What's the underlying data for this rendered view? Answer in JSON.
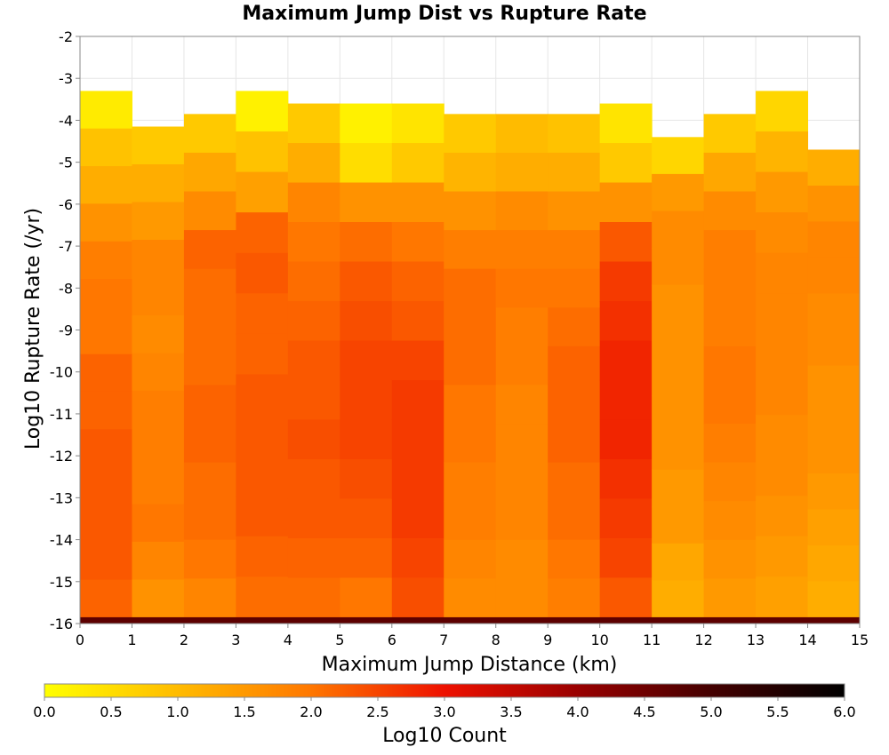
{
  "chart_data": {
    "type": "heatmap",
    "title": "Maximum Jump Dist vs Rupture Rate",
    "xlabel": "Maximum Jump Distance (km)",
    "ylabel": "Log10 Rupture Rate (/yr)",
    "xlim": [
      0,
      15
    ],
    "ylim": [
      -16,
      -2
    ],
    "x_ticks": [
      "0",
      "1",
      "2",
      "3",
      "4",
      "5",
      "6",
      "7",
      "8",
      "9",
      "10",
      "11",
      "12",
      "13",
      "14",
      "15"
    ],
    "y_ticks": [
      "-2",
      "-3",
      "-4",
      "-5",
      "-6",
      "-7",
      "-8",
      "-9",
      "-10",
      "-11",
      "-12",
      "-13",
      "-14",
      "-15",
      "-16"
    ],
    "grid": true,
    "x_bins": [
      0,
      1,
      2,
      3,
      4,
      5,
      6,
      7,
      8,
      9,
      10,
      11,
      12,
      13,
      14,
      15
    ],
    "y_bin_width": 0.286,
    "colorbar": {
      "label": "Log10 Count",
      "ticks": [
        "0.0",
        "0.5",
        "1.0",
        "1.5",
        "2.0",
        "2.5",
        "3.0",
        "3.5",
        "4.0",
        "4.5",
        "5.0",
        "5.5",
        "6.0"
      ],
      "min": 0,
      "max": 6,
      "stops": [
        [
          0,
          "#ffff00"
        ],
        [
          1,
          "#ffbb00"
        ],
        [
          2,
          "#ff7700"
        ],
        [
          3,
          "#ee1100"
        ],
        [
          4,
          "#990000"
        ],
        [
          5,
          "#440000"
        ],
        [
          6,
          "#000000"
        ]
      ]
    },
    "columns": [
      {
        "x": 0.5,
        "top": -3.3,
        "log10_count": [
          0.3,
          0.9,
          1.2,
          1.6,
          1.9,
          2.0,
          2.0,
          2.2,
          2.2,
          2.3,
          2.3,
          2.3,
          2.3,
          2.2
        ]
      },
      {
        "x": 1.5,
        "top": -4.15,
        "log10_count": [
          0.8,
          1.2,
          1.5,
          1.8,
          1.8,
          1.7,
          1.8,
          1.9,
          1.9,
          1.9,
          2.0,
          1.8,
          1.6
        ]
      },
      {
        "x": 2.5,
        "top": -3.85,
        "log10_count": [
          0.8,
          1.3,
          1.7,
          2.2,
          2.1,
          2.1,
          2.1,
          2.2,
          2.2,
          2.1,
          2.1,
          2.0,
          1.8
        ]
      },
      {
        "x": 3.5,
        "top": -3.3,
        "log10_count": [
          0.2,
          0.9,
          1.4,
          2.2,
          2.3,
          2.2,
          2.2,
          2.3,
          2.3,
          2.3,
          2.3,
          2.2,
          2.1
        ]
      },
      {
        "x": 4.5,
        "top": -3.6,
        "log10_count": [
          0.8,
          1.2,
          1.8,
          2.0,
          2.1,
          2.2,
          2.3,
          2.3,
          2.4,
          2.3,
          2.3,
          2.2,
          2.1
        ]
      },
      {
        "x": 5.5,
        "top": -3.6,
        "log10_count": [
          0.2,
          0.5,
          1.6,
          2.1,
          2.3,
          2.4,
          2.5,
          2.5,
          2.5,
          2.4,
          2.3,
          2.2,
          2.0
        ]
      },
      {
        "x": 6.5,
        "top": -3.6,
        "log10_count": [
          0.4,
          0.8,
          1.6,
          2.0,
          2.2,
          2.3,
          2.5,
          2.6,
          2.6,
          2.6,
          2.6,
          2.5,
          2.4
        ]
      },
      {
        "x": 7.5,
        "top": -3.85,
        "log10_count": [
          0.8,
          1.1,
          1.6,
          1.9,
          2.1,
          2.1,
          2.1,
          2.0,
          2.0,
          1.9,
          1.9,
          1.8,
          1.7
        ]
      },
      {
        "x": 8.5,
        "top": -3.85,
        "log10_count": [
          1.0,
          1.2,
          1.7,
          1.9,
          2.0,
          1.9,
          1.9,
          1.8,
          1.8,
          1.8,
          1.8,
          1.7,
          1.7
        ]
      },
      {
        "x": 9.5,
        "top": -3.85,
        "log10_count": [
          0.9,
          1.2,
          1.6,
          1.9,
          2.0,
          2.1,
          2.2,
          2.2,
          2.2,
          2.1,
          2.1,
          2.0,
          1.9
        ]
      },
      {
        "x": 10.5,
        "top": -3.6,
        "log10_count": [
          0.4,
          0.8,
          1.6,
          2.3,
          2.6,
          2.7,
          2.8,
          2.8,
          2.8,
          2.7,
          2.6,
          2.5,
          2.3
        ]
      },
      {
        "x": 11.5,
        "top": -4.4,
        "log10_count": [
          0.6,
          1.5,
          1.7,
          1.7,
          1.6,
          1.6,
          1.6,
          1.6,
          1.6,
          1.5,
          1.5,
          1.3,
          1.2
        ]
      },
      {
        "x": 12.5,
        "top": -3.85,
        "log10_count": [
          0.8,
          1.3,
          1.7,
          1.9,
          1.9,
          1.9,
          2.0,
          2.0,
          1.9,
          1.8,
          1.7,
          1.6,
          1.5
        ]
      },
      {
        "x": 13.5,
        "top": -3.3,
        "log10_count": [
          0.6,
          1.1,
          1.5,
          1.7,
          1.8,
          1.8,
          1.8,
          1.8,
          1.7,
          1.7,
          1.6,
          1.5,
          1.4
        ]
      },
      {
        "x": 14.5,
        "top": -4.7,
        "log10_count": [
          1.2,
          1.6,
          1.8,
          1.8,
          1.7,
          1.7,
          1.6,
          1.6,
          1.6,
          1.5,
          1.4,
          1.3,
          1.2
        ]
      }
    ],
    "bottom_row": {
      "y_range": [
        -16,
        -15.85
      ],
      "log10_count": 4.7
    }
  }
}
